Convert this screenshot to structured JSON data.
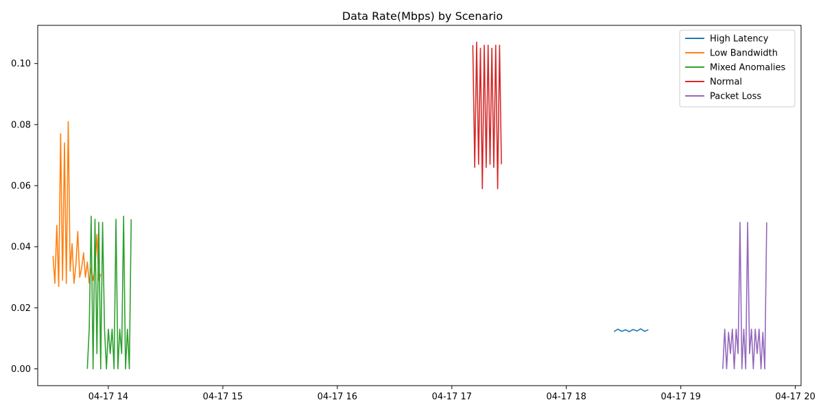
{
  "chart_data": {
    "type": "line",
    "title": "Data Rate(Mbps) by Scenario",
    "xlabel": "",
    "ylabel": "",
    "x_axis_type": "datetime",
    "xlim": [
      "2023-04-17 13:23",
      "2023-04-17 20:03"
    ],
    "ylim": [
      -0.0055,
      0.1125
    ],
    "x_ticks": [
      {
        "value": "2023-04-17 14:00",
        "label": "04-17 14"
      },
      {
        "value": "2023-04-17 15:00",
        "label": "04-17 15"
      },
      {
        "value": "2023-04-17 16:00",
        "label": "04-17 16"
      },
      {
        "value": "2023-04-17 17:00",
        "label": "04-17 17"
      },
      {
        "value": "2023-04-17 18:00",
        "label": "04-17 18"
      },
      {
        "value": "2023-04-17 19:00",
        "label": "04-17 19"
      },
      {
        "value": "2023-04-17 20:00",
        "label": "04-17 20"
      }
    ],
    "y_ticks": [
      {
        "value": 0.0,
        "label": "0.00"
      },
      {
        "value": 0.02,
        "label": "0.02"
      },
      {
        "value": 0.04,
        "label": "0.04"
      },
      {
        "value": 0.06,
        "label": "0.06"
      },
      {
        "value": 0.08,
        "label": "0.08"
      },
      {
        "value": 0.1,
        "label": "0.10"
      }
    ],
    "grid": false,
    "legend_position": "top-right",
    "series": [
      {
        "name": "High Latency",
        "color": "#1f77b4",
        "x": [
          "2023-04-17 18:25",
          "2023-04-17 18:27",
          "2023-04-17 18:29",
          "2023-04-17 18:31",
          "2023-04-17 18:33",
          "2023-04-17 18:35",
          "2023-04-17 18:37",
          "2023-04-17 18:39",
          "2023-04-17 18:41",
          "2023-04-17 18:43"
        ],
        "y": [
          0.0122,
          0.013,
          0.0123,
          0.0128,
          0.0122,
          0.0129,
          0.0124,
          0.0131,
          0.0123,
          0.0128
        ]
      },
      {
        "name": "Low Bandwidth",
        "color": "#ff7f0e",
        "x": [
          "2023-04-17 13:31",
          "2023-04-17 13:32",
          "2023-04-17 13:33",
          "2023-04-17 13:34",
          "2023-04-17 13:35",
          "2023-04-17 13:36",
          "2023-04-17 13:37",
          "2023-04-17 13:38",
          "2023-04-17 13:39",
          "2023-04-17 13:40",
          "2023-04-17 13:41",
          "2023-04-17 13:42",
          "2023-04-17 13:43",
          "2023-04-17 13:44",
          "2023-04-17 13:45",
          "2023-04-17 13:46",
          "2023-04-17 13:47",
          "2023-04-17 13:48",
          "2023-04-17 13:49",
          "2023-04-17 13:50",
          "2023-04-17 13:51",
          "2023-04-17 13:52",
          "2023-04-17 13:53",
          "2023-04-17 13:54",
          "2023-04-17 13:55",
          "2023-04-17 13:56"
        ],
        "y": [
          0.037,
          0.028,
          0.047,
          0.027,
          0.077,
          0.029,
          0.074,
          0.028,
          0.081,
          0.032,
          0.041,
          0.028,
          0.034,
          0.045,
          0.03,
          0.033,
          0.038,
          0.03,
          0.035,
          0.028,
          0.033,
          0.029,
          0.033,
          0.044,
          0.029,
          0.031
        ]
      },
      {
        "name": "Mixed Anomalies",
        "color": "#2ca02c",
        "x": [
          "2023-04-17 13:49",
          "2023-04-17 13:50",
          "2023-04-17 13:51",
          "2023-04-17 13:52",
          "2023-04-17 13:53",
          "2023-04-17 13:54",
          "2023-04-17 13:55",
          "2023-04-17 13:56",
          "2023-04-17 13:57",
          "2023-04-17 13:58",
          "2023-04-17 13:59",
          "2023-04-17 14:00",
          "2023-04-17 14:01",
          "2023-04-17 14:02",
          "2023-04-17 14:03",
          "2023-04-17 14:04",
          "2023-04-17 14:05",
          "2023-04-17 14:06",
          "2023-04-17 14:07",
          "2023-04-17 14:08",
          "2023-04-17 14:09",
          "2023-04-17 14:10",
          "2023-04-17 14:11",
          "2023-04-17 14:12"
        ],
        "y": [
          0.0,
          0.013,
          0.05,
          0.0,
          0.049,
          0.005,
          0.048,
          0.0,
          0.048,
          0.013,
          0.0,
          0.013,
          0.005,
          0.013,
          0.0,
          0.049,
          0.0,
          0.013,
          0.005,
          0.05,
          0.0,
          0.013,
          0.0,
          0.049
        ]
      },
      {
        "name": "Normal",
        "color": "#d62728",
        "x": [
          "2023-04-17 17:11",
          "2023-04-17 17:12",
          "2023-04-17 17:13",
          "2023-04-17 17:14",
          "2023-04-17 17:15",
          "2023-04-17 17:16",
          "2023-04-17 17:17",
          "2023-04-17 17:18",
          "2023-04-17 17:19",
          "2023-04-17 17:20",
          "2023-04-17 17:21",
          "2023-04-17 17:22",
          "2023-04-17 17:23",
          "2023-04-17 17:24",
          "2023-04-17 17:25",
          "2023-04-17 17:26"
        ],
        "y": [
          0.106,
          0.066,
          0.107,
          0.067,
          0.105,
          0.059,
          0.106,
          0.066,
          0.106,
          0.067,
          0.105,
          0.066,
          0.106,
          0.059,
          0.106,
          0.067
        ]
      },
      {
        "name": "Packet Loss",
        "color": "#9467bd",
        "x": [
          "2023-04-17 19:22",
          "2023-04-17 19:23",
          "2023-04-17 19:24",
          "2023-04-17 19:25",
          "2023-04-17 19:26",
          "2023-04-17 19:27",
          "2023-04-17 19:28",
          "2023-04-17 19:29",
          "2023-04-17 19:30",
          "2023-04-17 19:31",
          "2023-04-17 19:32",
          "2023-04-17 19:33",
          "2023-04-17 19:34",
          "2023-04-17 19:35",
          "2023-04-17 19:36",
          "2023-04-17 19:37",
          "2023-04-17 19:38",
          "2023-04-17 19:39",
          "2023-04-17 19:40",
          "2023-04-17 19:41",
          "2023-04-17 19:42",
          "2023-04-17 19:43",
          "2023-04-17 19:44",
          "2023-04-17 19:45"
        ],
        "y": [
          0.0,
          0.013,
          0.0,
          0.012,
          0.005,
          0.013,
          0.0,
          0.013,
          0.005,
          0.048,
          0.0,
          0.013,
          0.0,
          0.048,
          0.005,
          0.013,
          0.0,
          0.013,
          0.005,
          0.013,
          0.0,
          0.012,
          0.0,
          0.048
        ]
      }
    ]
  }
}
